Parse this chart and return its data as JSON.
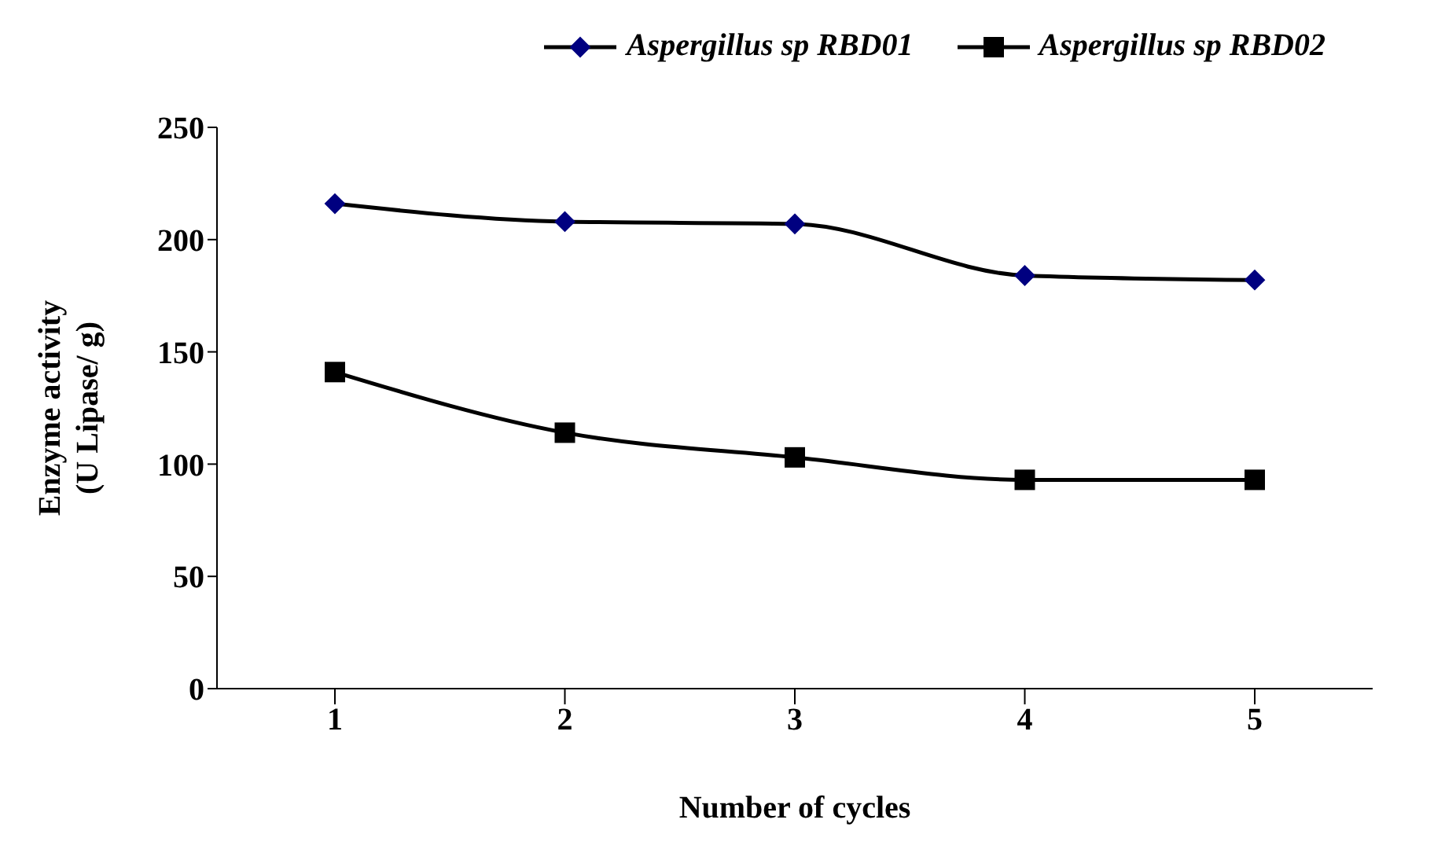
{
  "chart_data": {
    "type": "line",
    "xlabel": "Number of cycles",
    "ylabel": "Enzyme activity\n(U Lipase/ g)",
    "categories": [
      "1",
      "2",
      "3",
      "4",
      "5"
    ],
    "series": [
      {
        "name": "Aspergillus sp RBD01",
        "color": "#000080",
        "marker": "diamond",
        "values": [
          216,
          208,
          207,
          184,
          182
        ]
      },
      {
        "name": "Aspergillus sp RBD02",
        "color": "#000000",
        "marker": "square",
        "values": [
          141,
          114,
          103,
          93,
          93
        ]
      }
    ],
    "ylim": [
      0,
      250
    ],
    "yticks": [
      0,
      50,
      100,
      150,
      200,
      250
    ],
    "grid": false,
    "legend": "top",
    "line_style": "solid"
  }
}
